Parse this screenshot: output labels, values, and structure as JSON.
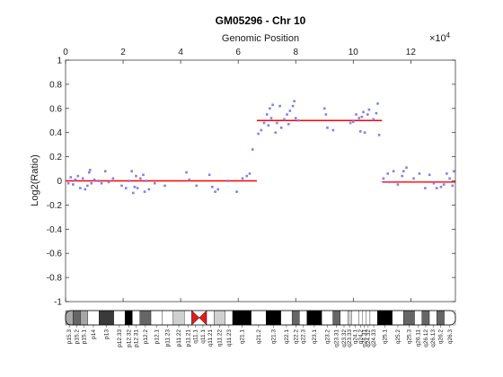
{
  "chart_data": {
    "type": "scatter",
    "title": "GM05296 - Chr 10",
    "xlabel": "Genomic Position",
    "ylabel": "Log2(Ratio)",
    "x_exponent_label": "×10",
    "x_exponent_power": "4",
    "xlim": [
      0,
      13550
    ],
    "ylim": [
      -1,
      1
    ],
    "x_ticks": [
      "0",
      "2",
      "4",
      "6",
      "8",
      "10",
      "12"
    ],
    "y_ticks": [
      "1",
      "0.8",
      "0.6",
      "0.4",
      "0.2",
      "0",
      "-0.2",
      "-0.4",
      "-0.6",
      "-0.8",
      "-1"
    ],
    "grid": false,
    "points_color": "#8080f0",
    "segment_color": "#ff0000",
    "segments": [
      {
        "x_start": 0,
        "x_end": 6650,
        "y": 0.0
      },
      {
        "x_start": 6650,
        "x_end": 11000,
        "y": 0.5
      },
      {
        "x_start": 11000,
        "x_end": 13550,
        "y": -0.01
      }
    ],
    "points": [
      [
        100,
        -0.02
      ],
      [
        180,
        0.03
      ],
      [
        260,
        -0.03
      ],
      [
        340,
        0.01
      ],
      [
        430,
        0.04
      ],
      [
        510,
        -0.06
      ],
      [
        600,
        0.02
      ],
      [
        680,
        -0.07
      ],
      [
        760,
        -0.04
      ],
      [
        820,
        0.07
      ],
      [
        850,
        0.09
      ],
      [
        900,
        -0.02
      ],
      [
        1000,
        0.01
      ],
      [
        1150,
        0.0
      ],
      [
        1250,
        -0.02
      ],
      [
        1380,
        0.08
      ],
      [
        1500,
        -0.01
      ],
      [
        1650,
        0.02
      ],
      [
        1950,
        -0.04
      ],
      [
        2100,
        -0.06
      ],
      [
        2200,
        0.0
      ],
      [
        2300,
        0.08
      ],
      [
        2350,
        -0.1
      ],
      [
        2400,
        -0.05
      ],
      [
        2450,
        0.04
      ],
      [
        2500,
        -0.06
      ],
      [
        2600,
        0.02
      ],
      [
        2700,
        0.05
      ],
      [
        2750,
        -0.09
      ],
      [
        2800,
        0.0
      ],
      [
        2900,
        -0.07
      ],
      [
        3100,
        -0.02
      ],
      [
        3450,
        -0.04
      ],
      [
        4200,
        0.07
      ],
      [
        4300,
        0.01
      ],
      [
        4550,
        -0.04
      ],
      [
        5000,
        0.05
      ],
      [
        5100,
        -0.05
      ],
      [
        5200,
        -0.09
      ],
      [
        5300,
        -0.07
      ],
      [
        5650,
        0.0
      ],
      [
        5950,
        -0.09
      ],
      [
        6150,
        0.02
      ],
      [
        6300,
        0.04
      ],
      [
        6400,
        0.06
      ],
      [
        6500,
        0.26
      ],
      [
        6700,
        0.39
      ],
      [
        6800,
        0.42
      ],
      [
        6900,
        0.48
      ],
      [
        7000,
        0.55
      ],
      [
        7050,
        0.46
      ],
      [
        7100,
        0.6
      ],
      [
        7150,
        0.52
      ],
      [
        7200,
        0.63
      ],
      [
        7300,
        0.4
      ],
      [
        7350,
        0.48
      ],
      [
        7450,
        0.62
      ],
      [
        7500,
        0.44
      ],
      [
        7600,
        0.51
      ],
      [
        7700,
        0.55
      ],
      [
        7750,
        0.47
      ],
      [
        7800,
        0.58
      ],
      [
        7900,
        0.62
      ],
      [
        7950,
        0.66
      ],
      [
        8000,
        0.52
      ],
      [
        8100,
        0.5
      ],
      [
        9000,
        0.6
      ],
      [
        9050,
        0.55
      ],
      [
        9100,
        0.44
      ],
      [
        9300,
        0.42
      ],
      [
        9900,
        0.48
      ],
      [
        10000,
        0.49
      ],
      [
        10100,
        0.55
      ],
      [
        10200,
        0.52
      ],
      [
        10250,
        0.41
      ],
      [
        10300,
        0.53
      ],
      [
        10350,
        0.57
      ],
      [
        10400,
        0.4
      ],
      [
        10500,
        0.55
      ],
      [
        10550,
        0.59
      ],
      [
        10700,
        0.51
      ],
      [
        10800,
        0.56
      ],
      [
        10850,
        0.64
      ],
      [
        10900,
        0.38
      ],
      [
        11050,
        0.02
      ],
      [
        11200,
        0.06
      ],
      [
        11250,
        -0.01
      ],
      [
        11400,
        0.08
      ],
      [
        11550,
        -0.03
      ],
      [
        11700,
        0.04
      ],
      [
        11750,
        0.08
      ],
      [
        11850,
        0.11
      ],
      [
        12100,
        0.02
      ],
      [
        12300,
        0.06
      ],
      [
        12500,
        -0.06
      ],
      [
        12650,
        0.05
      ],
      [
        12800,
        -0.02
      ],
      [
        12900,
        -0.06
      ],
      [
        13050,
        -0.05
      ],
      [
        13150,
        -0.03
      ],
      [
        13250,
        0.06
      ],
      [
        13350,
        0.02
      ],
      [
        13450,
        -0.04
      ],
      [
        13500,
        0.08
      ]
    ]
  },
  "ideogram": {
    "bands": [
      "p15.3",
      "p15.2",
      "p15.1",
      "p14",
      "p13",
      "p12.33",
      "p12.32",
      "p12.31",
      "p12.2",
      "p12.1",
      "p11.23",
      "p11.22",
      "p11.21",
      "q11.1",
      "q11.1",
      "q11.21",
      "q11.22",
      "q11.23",
      "q21.1",
      "q21.2",
      "q21.3",
      "q22.1",
      "q22.2",
      "q22.3",
      "q23.1",
      "q23.2",
      "q23.31",
      "q23.32",
      "q23.33",
      "q24.1",
      "q24.2",
      "q24.31",
      "q24.32",
      "q24.33",
      "q25.1",
      "q25.2",
      "q25.3",
      "q26.11",
      "q26.12",
      "q26.13",
      "q26.2",
      "q26.3"
    ],
    "stains": [
      "g",
      "d",
      "g",
      "w",
      "b",
      "w",
      "k",
      "w",
      "d",
      "w",
      "w",
      "l",
      "w",
      "c",
      "c",
      "w",
      "l",
      "w",
      "k",
      "w",
      "k",
      "w",
      "d",
      "w",
      "k",
      "w",
      "d",
      "w",
      "l",
      "w",
      "w",
      "w",
      "w",
      "w",
      "k",
      "w",
      "d",
      "w",
      "d",
      "w",
      "d",
      "w"
    ],
    "widths": [
      2,
      2,
      2,
      3,
      4,
      3,
      2,
      2,
      3,
      3,
      3,
      3,
      2,
      2,
      2,
      2,
      3,
      2,
      5,
      4,
      4,
      3,
      2,
      2,
      4,
      3,
      2,
      2,
      1,
      2,
      1,
      1,
      1,
      2,
      4,
      3,
      3,
      2,
      2,
      2,
      2,
      3
    ]
  }
}
